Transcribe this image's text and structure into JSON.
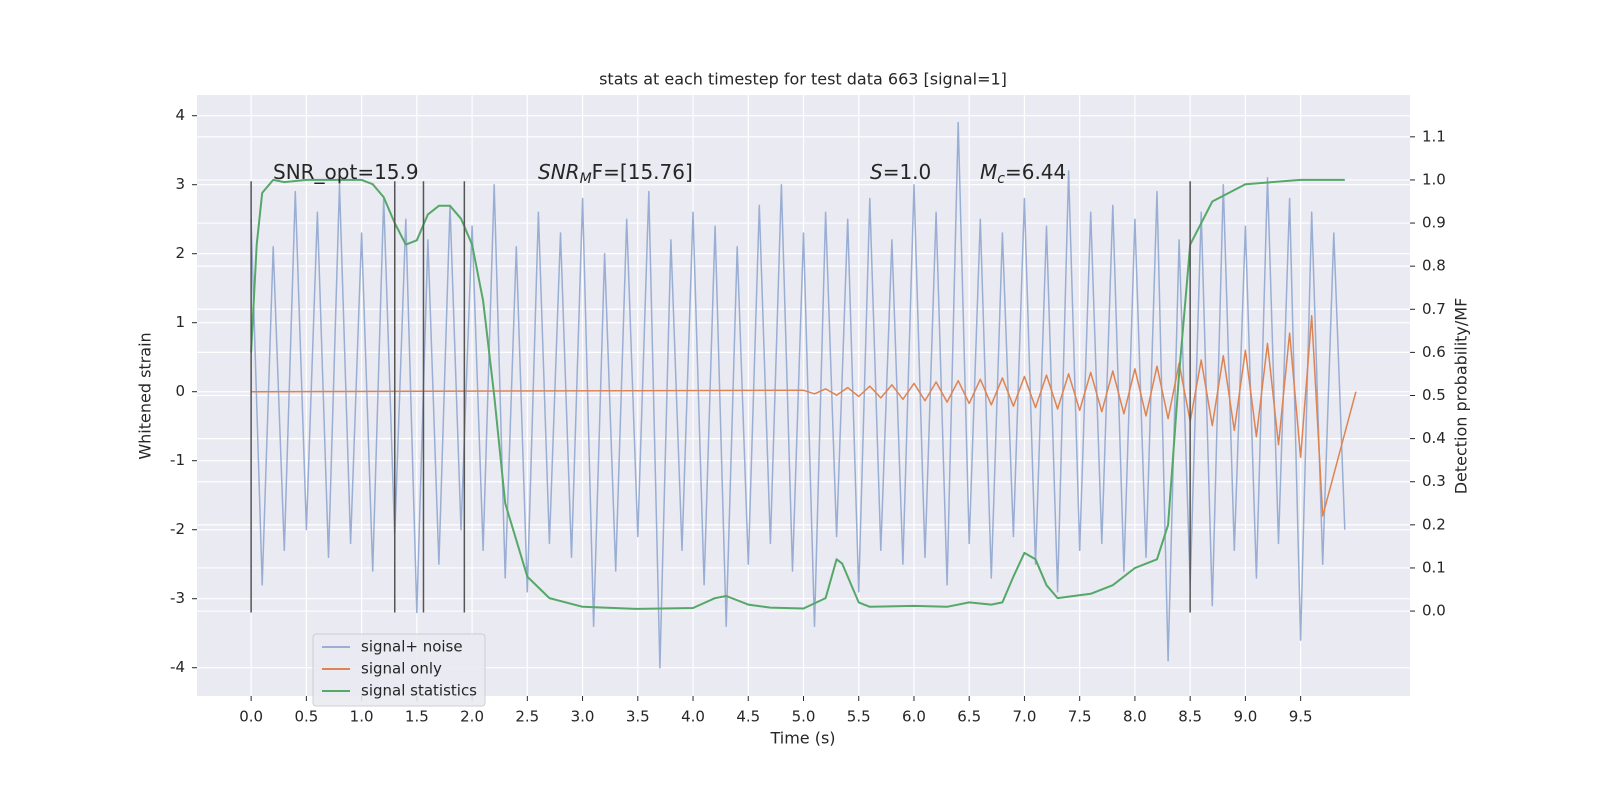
{
  "chart_data": {
    "type": "line",
    "title": "stats at each timestep for test data 663 [signal=1]",
    "x_label": "Time (s)",
    "y_label": "Whitened strain",
    "y2_label": "Detection probability/MF",
    "grid": true,
    "background": "#eaeaf2",
    "xlim": [
      -0.49,
      10.49
    ],
    "ylim": [
      -4.41,
      4.3
    ],
    "y2lim": [
      -0.197,
      1.197
    ],
    "xticks": [
      {
        "value": 0,
        "label": "0.0"
      },
      0.5,
      {
        "value": 1,
        "label": "1.0"
      },
      1.5,
      {
        "value": 2,
        "label": "2.0"
      },
      2.5,
      {
        "value": 3,
        "label": "3.0"
      },
      3.5,
      {
        "value": 4,
        "label": "4.0"
      },
      4.5,
      {
        "value": 5,
        "label": "5.0"
      },
      5.5,
      {
        "value": 6,
        "label": "6.0"
      },
      6.5,
      {
        "value": 7,
        "label": "7.0"
      },
      7.5,
      {
        "value": 8,
        "label": "8.0"
      },
      8.5,
      {
        "value": 9,
        "label": "9.0"
      },
      9.5
    ],
    "yticks": [
      -4,
      -3,
      -2,
      -1,
      0,
      1,
      2,
      3,
      4
    ],
    "y2ticks": [
      {
        "value": 0,
        "label": "0.0"
      },
      0.1,
      0.2,
      0.3,
      0.4,
      0.5,
      0.6,
      0.7,
      0.8,
      0.9,
      {
        "value": 1,
        "label": "1.0"
      },
      1.1
    ],
    "vlines": [
      0,
      1.3,
      1.56,
      1.93,
      8.5
    ],
    "vline_range": [
      -3.2,
      3.05
    ],
    "vline_color": "#555555",
    "annotations": [
      {
        "base": "SNR_opt=15.9"
      },
      {
        "base": "SNR",
        "sub": "M",
        "tail": "F=[15.76]"
      },
      {
        "base": "S",
        "tail": "=1.0"
      },
      {
        "base": "M",
        "sub": "c",
        "tail": "=6.44"
      }
    ],
    "series": [
      {
        "name": "signal+ noise",
        "color": "#9aaed3",
        "x": [
          0.0,
          0.1,
          0.2,
          0.3,
          0.4,
          0.5,
          0.6,
          0.7,
          0.8,
          0.9,
          1.0,
          1.1,
          1.2,
          1.3,
          1.4,
          1.5,
          1.6,
          1.7,
          1.8,
          1.9,
          2.0,
          2.1,
          2.2,
          2.3,
          2.4,
          2.5,
          2.6,
          2.7,
          2.8,
          2.9,
          3.0,
          3.1,
          3.2,
          3.3,
          3.4,
          3.5,
          3.6,
          3.7,
          3.8,
          3.9,
          4.0,
          4.1,
          4.2,
          4.3,
          4.4,
          4.5,
          4.6,
          4.7,
          4.8,
          4.9,
          5.0,
          5.1,
          5.2,
          5.3,
          5.4,
          5.5,
          5.6,
          5.7,
          5.8,
          5.9,
          6.0,
          6.1,
          6.2,
          6.3,
          6.4,
          6.5,
          6.6,
          6.7,
          6.8,
          6.9,
          7.0,
          7.1,
          7.2,
          7.3,
          7.4,
          7.5,
          7.6,
          7.7,
          7.8,
          7.9,
          8.0,
          8.1,
          8.2,
          8.3,
          8.4,
          8.5,
          8.6,
          8.7,
          8.8,
          8.9,
          9.0,
          9.1,
          9.2,
          9.3,
          9.4,
          9.5,
          9.6,
          9.7,
          9.8,
          9.9
        ],
        "values": [
          2.5,
          -2.8,
          2.1,
          -2.3,
          2.9,
          -2.0,
          2.6,
          -2.4,
          3.0,
          -2.2,
          2.3,
          -2.6,
          2.8,
          -2.1,
          2.5,
          -3.2,
          2.2,
          -2.5,
          2.7,
          -2.0,
          2.4,
          -2.3,
          3.0,
          -2.7,
          2.1,
          -2.9,
          2.6,
          -2.2,
          2.3,
          -2.4,
          2.8,
          -3.4,
          2.0,
          -2.6,
          2.5,
          -2.1,
          2.9,
          -4.0,
          2.2,
          -2.3,
          2.6,
          -2.8,
          2.4,
          -3.4,
          2.1,
          -2.5,
          2.7,
          -2.2,
          3.0,
          -2.6,
          2.3,
          -3.4,
          2.6,
          -2.1,
          2.5,
          -2.9,
          2.8,
          -2.3,
          2.2,
          -2.5,
          3.0,
          -2.4,
          2.6,
          -2.8,
          3.9,
          -2.2,
          2.5,
          -2.7,
          2.3,
          -2.1,
          2.8,
          -2.5,
          2.4,
          -2.9,
          3.2,
          -2.3,
          2.6,
          -2.2,
          2.7,
          -2.6,
          2.5,
          -2.4,
          2.9,
          -3.9,
          2.2,
          -2.8,
          2.6,
          -3.1,
          3.0,
          -2.3,
          2.4,
          -2.7,
          3.1,
          -2.2,
          2.8,
          -3.6,
          2.6,
          -2.5,
          2.3,
          -2.0
        ]
      },
      {
        "name": "signal only",
        "color": "#dd8452",
        "x": [
          0.0,
          5.0,
          5.1,
          5.2,
          5.3,
          5.4,
          5.5,
          5.6,
          5.7,
          5.8,
          5.9,
          6.0,
          6.1,
          6.2,
          6.3,
          6.4,
          6.5,
          6.6,
          6.7,
          6.8,
          6.9,
          7.0,
          7.1,
          7.2,
          7.3,
          7.4,
          7.5,
          7.6,
          7.7,
          7.8,
          7.9,
          8.0,
          8.1,
          8.2,
          8.3,
          8.4,
          8.5,
          8.6,
          8.7,
          8.8,
          8.9,
          9.0,
          9.1,
          9.2,
          9.3,
          9.4,
          9.5,
          9.6,
          9.7,
          10.0
        ],
        "values": [
          0,
          0.02,
          -0.03,
          0.04,
          -0.05,
          0.06,
          -0.07,
          0.08,
          -0.09,
          0.1,
          -0.11,
          0.12,
          -0.13,
          0.14,
          -0.15,
          0.16,
          -0.17,
          0.18,
          -0.19,
          0.2,
          -0.21,
          0.22,
          -0.23,
          0.24,
          -0.25,
          0.26,
          -0.27,
          0.28,
          -0.29,
          0.3,
          -0.32,
          0.33,
          -0.35,
          0.37,
          -0.39,
          0.41,
          -0.43,
          0.46,
          -0.49,
          0.52,
          -0.56,
          0.6,
          -0.65,
          0.7,
          -0.77,
          0.85,
          -0.95,
          1.1,
          -1.8,
          0
        ]
      },
      {
        "name": "signal statistics",
        "color": "#55a868",
        "axis": "y2",
        "x": [
          0,
          0.05,
          0.1,
          0.2,
          0.3,
          0.5,
          0.8,
          1.0,
          1.1,
          1.2,
          1.3,
          1.4,
          1.5,
          1.6,
          1.7,
          1.8,
          1.9,
          2.0,
          2.1,
          2.2,
          2.3,
          2.5,
          2.7,
          3.0,
          3.5,
          4.0,
          4.2,
          4.3,
          4.5,
          4.7,
          5.0,
          5.2,
          5.3,
          5.35,
          5.45,
          5.5,
          5.6,
          6.0,
          6.3,
          6.5,
          6.7,
          6.8,
          6.9,
          7.0,
          7.1,
          7.2,
          7.3,
          7.6,
          7.8,
          8.0,
          8.2,
          8.3,
          8.4,
          8.5,
          8.7,
          9.0,
          9.5,
          9.9
        ],
        "values": [
          0.6,
          0.85,
          0.97,
          1.0,
          0.995,
          1.0,
          1.0,
          1.0,
          0.99,
          0.96,
          0.9,
          0.85,
          0.86,
          0.92,
          0.94,
          0.94,
          0.91,
          0.85,
          0.72,
          0.5,
          0.25,
          0.08,
          0.03,
          0.01,
          0.005,
          0.007,
          0.03,
          0.035,
          0.015,
          0.008,
          0.006,
          0.03,
          0.12,
          0.11,
          0.05,
          0.02,
          0.01,
          0.012,
          0.01,
          0.02,
          0.015,
          0.02,
          0.08,
          0.135,
          0.12,
          0.06,
          0.03,
          0.04,
          0.06,
          0.1,
          0.12,
          0.2,
          0.55,
          0.85,
          0.95,
          0.99,
          1.0,
          1.0
        ]
      }
    ]
  }
}
